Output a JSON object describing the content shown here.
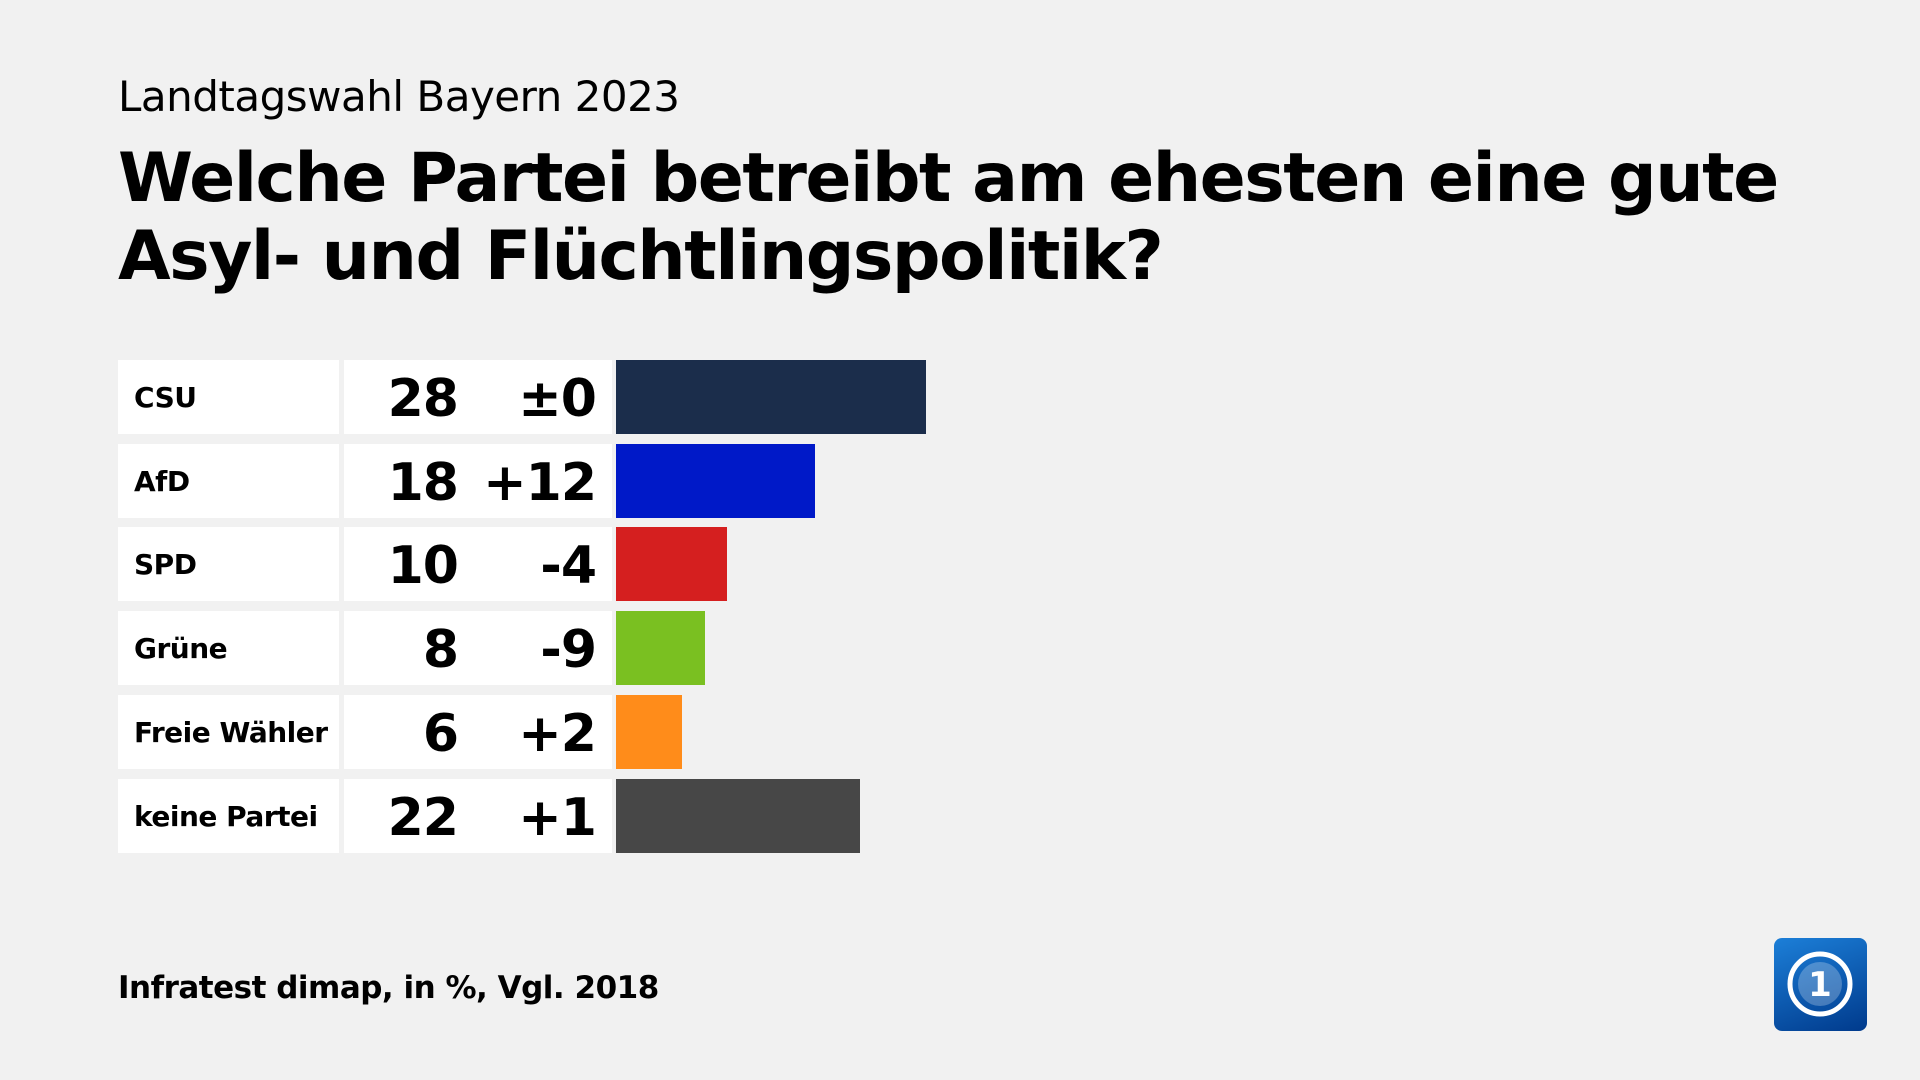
{
  "header": {
    "subtitle": "Landtagswahl Bayern 2023",
    "title": "Welche Partei betreibt am ehesten eine gute Asyl- und Flüchtlingspolitik?"
  },
  "footer": {
    "source": "Infratest dimap, in %, Vgl. 2018"
  },
  "logo": {
    "name": "ard-tagesschau-logo",
    "text": "1"
  },
  "chart_data": {
    "type": "bar",
    "orientation": "horizontal",
    "title": "Welche Partei betreibt am ehesten eine gute Asyl- und Flüchtlingspolitik?",
    "categories": [
      "CSU",
      "AfD",
      "SPD",
      "Grüne",
      "Freie Wähler",
      "keine Partei"
    ],
    "values": [
      28,
      18,
      10,
      8,
      6,
      22
    ],
    "changes": [
      "±0",
      "+12",
      "-4",
      "-9",
      "+2",
      "+1"
    ],
    "colors": [
      "#1b2d4b",
      "#0019c8",
      "#d51f1f",
      "#7ac021",
      "#ff8c1a",
      "#474747"
    ],
    "grid": false
  }
}
